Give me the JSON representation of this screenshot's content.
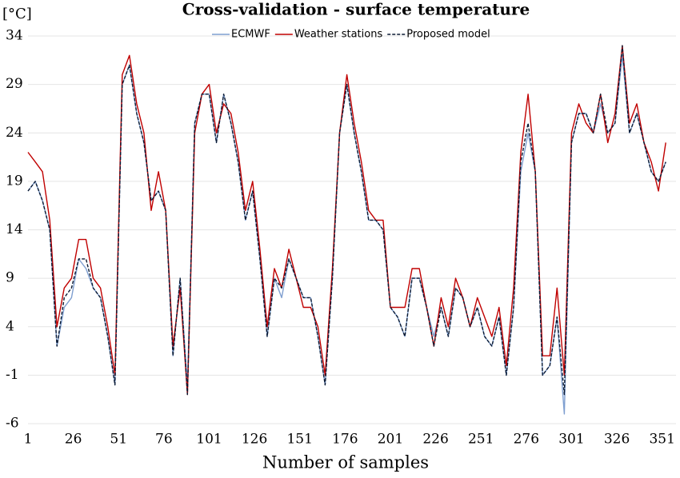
{
  "chart_data": {
    "type": "line",
    "title": "Cross-validation - surface temperature",
    "y_label": "[°C]",
    "x_label": "Number of samples",
    "x": [
      1,
      5,
      9,
      13,
      17,
      21,
      25,
      29,
      33,
      37,
      41,
      45,
      49,
      53,
      57,
      61,
      65,
      69,
      73,
      77,
      81,
      85,
      89,
      93,
      97,
      101,
      105,
      109,
      113,
      117,
      121,
      125,
      129,
      133,
      137,
      141,
      145,
      149,
      153,
      157,
      161,
      165,
      169,
      173,
      177,
      181,
      185,
      189,
      193,
      197,
      201,
      205,
      209,
      213,
      217,
      221,
      225,
      229,
      233,
      237,
      241,
      245,
      249,
      253,
      257,
      261,
      265,
      269,
      273,
      277,
      281,
      285,
      289,
      293,
      297,
      301,
      305,
      309,
      313,
      317,
      321,
      325,
      329,
      333,
      337,
      341,
      345,
      349,
      353
    ],
    "series": [
      {
        "name": "ECMWF",
        "color": "#7f9fd0",
        "dash": false,
        "values": [
          18,
          19,
          17,
          14,
          2,
          6,
          7,
          11,
          10,
          8,
          7,
          3,
          -2,
          29,
          31,
          26,
          23,
          17,
          18,
          16,
          1,
          9,
          -2,
          25,
          28,
          28,
          23,
          28,
          25,
          21,
          15,
          18,
          11,
          3,
          9,
          7,
          11,
          9,
          7,
          7,
          3,
          -2,
          9,
          24,
          29,
          24,
          20,
          15,
          15,
          14,
          6,
          5,
          3,
          9,
          9,
          6,
          3,
          6,
          3,
          8,
          7,
          4,
          6,
          3,
          2,
          5,
          -1,
          6,
          20,
          24,
          20,
          -1,
          0,
          5,
          -5,
          23,
          26,
          26,
          24,
          27,
          24,
          25,
          32,
          24,
          26,
          23,
          20,
          19,
          21
        ]
      },
      {
        "name": "Weather stations",
        "color": "#c00000",
        "dash": false,
        "values": [
          22,
          21,
          20,
          15,
          4,
          8,
          9,
          13,
          13,
          9,
          8,
          4,
          -1,
          30,
          32,
          27,
          24,
          16,
          20,
          16,
          2,
          8,
          -3,
          24,
          28,
          29,
          24,
          27,
          26,
          22,
          16,
          19,
          12,
          4,
          10,
          8,
          12,
          9,
          6,
          6,
          4,
          -1,
          10,
          24,
          30,
          25,
          21,
          16,
          15,
          15,
          6,
          6,
          6,
          10,
          10,
          6,
          2,
          7,
          4,
          9,
          7,
          4,
          7,
          5,
          3,
          6,
          0,
          8,
          22,
          28,
          20,
          1,
          1,
          8,
          -1,
          24,
          27,
          25,
          24,
          28,
          23,
          26,
          33,
          25,
          27,
          23,
          21,
          18,
          23
        ]
      },
      {
        "name": "Proposed model",
        "color": "#0b1a33",
        "dash": true,
        "values": [
          18,
          19,
          17,
          14,
          2,
          7,
          8,
          11,
          11,
          8,
          7,
          3,
          -2,
          29,
          31,
          26,
          23,
          17,
          18,
          16,
          1,
          9,
          -3,
          25,
          28,
          28,
          23,
          28,
          25,
          21,
          15,
          18,
          11,
          3,
          9,
          8,
          11,
          9,
          7,
          7,
          3,
          -2,
          9,
          24,
          29,
          24,
          20,
          15,
          15,
          14,
          6,
          5,
          3,
          9,
          9,
          6,
          2,
          6,
          3,
          8,
          7,
          4,
          6,
          3,
          2,
          5,
          -1,
          6,
          21,
          25,
          20,
          -1,
          0,
          5,
          -3,
          23,
          26,
          26,
          24,
          28,
          24,
          25,
          33,
          24,
          26,
          23,
          20,
          19,
          21
        ]
      }
    ],
    "xlim": [
      1,
      356
    ],
    "xticks": [
      1,
      26,
      51,
      76,
      101,
      126,
      151,
      176,
      201,
      226,
      251,
      276,
      301,
      326,
      351
    ],
    "ylim": [
      -6,
      34
    ],
    "yticks": [
      -6,
      -1,
      4,
      9,
      14,
      19,
      24,
      29,
      34
    ],
    "grid": true,
    "legend": "top"
  }
}
